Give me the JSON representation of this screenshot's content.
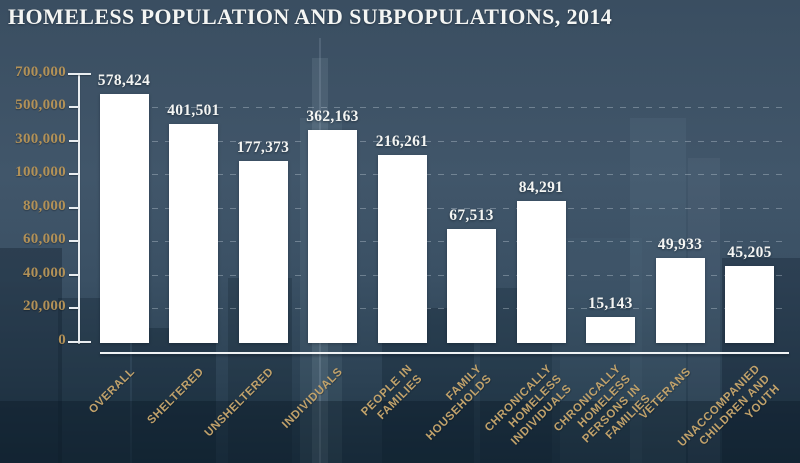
{
  "title": "HOMELESS POPULATION AND SUBPOPULATIONS, 2014",
  "theme": {
    "bg-top": "#3a4e61",
    "bg-bottom": "#1f3445",
    "bar-color": "#ffffff",
    "gold": "#b29157",
    "gold-light": "#c1a26b",
    "text-light": "#f4f5f3",
    "axis-color": "#e9edf0"
  },
  "chart_data": {
    "type": "bar",
    "title": "Homeless Population and Subpopulations, 2014",
    "categories": [
      "OVERALL",
      "SHELTERED",
      "UNSHELTERED",
      "INDIVIDUALS",
      "PEOPLE IN\nFAMILIES",
      "FAMILY\nHOUSEHOLDS",
      "CHRONICALLY\nHOMELESS\nINDIVIDUALS",
      "CHRONICALLY\nHOMELESS\nPERSONS IN\nFAMILIES",
      "VETERANS",
      "UNACCOMPANIED\nCHILDREN AND\nYOUTH"
    ],
    "values": [
      578424,
      401501,
      177373,
      362163,
      216261,
      67513,
      84291,
      15143,
      49933,
      45205
    ],
    "value_labels": [
      "578,424",
      "401,501",
      "177,373",
      "362,163",
      "216,261",
      "67,513",
      "84,291",
      "15,143",
      "49,933",
      "45,205"
    ],
    "yticks": {
      "labels": [
        "700,000",
        "500,000",
        "300,000",
        "100,000",
        "80,000",
        "60,000",
        "40,000",
        "20,000",
        "0"
      ],
      "values": [
        700000,
        500000,
        300000,
        100000,
        80000,
        60000,
        40000,
        20000,
        0
      ]
    },
    "ylabel": "",
    "xlabel": "",
    "axis_note": "broken scale: 200,000 per division above 100,000; 20,000 per division below 100,000",
    "grid": "dashed horizontal gridlines at each tick",
    "legend": "none",
    "bar_color": "#ffffff",
    "label_color": "#c1a26b"
  }
}
